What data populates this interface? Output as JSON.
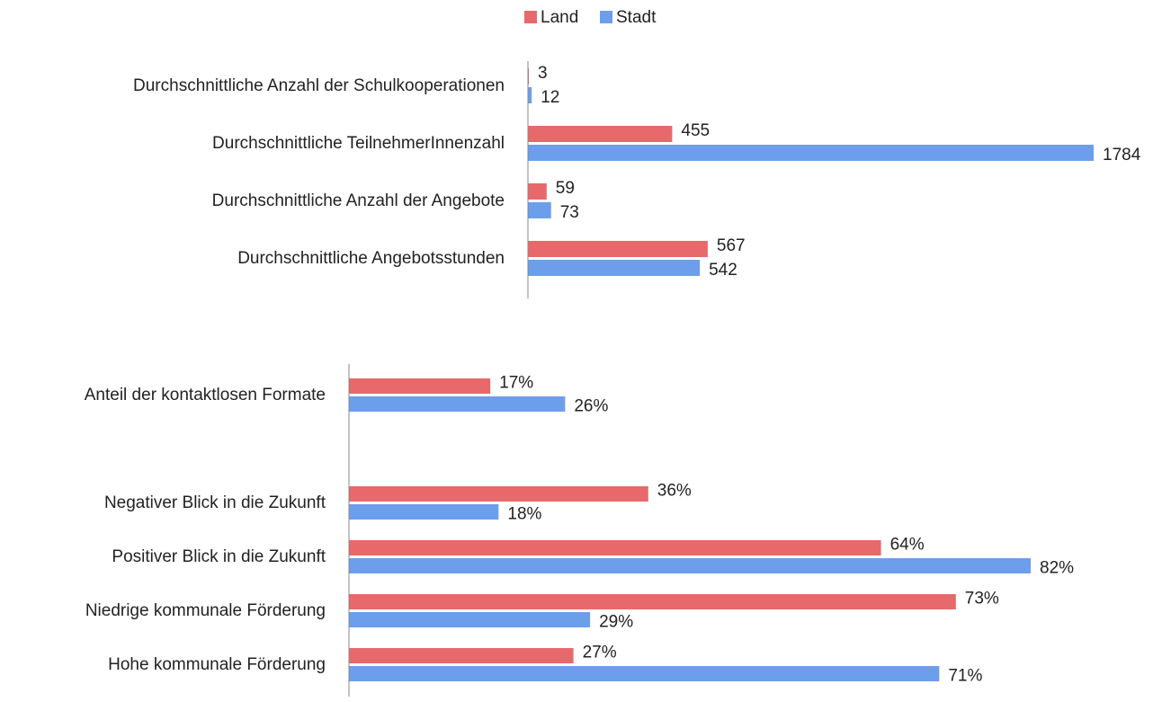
{
  "chart_data": [
    {
      "type": "bar",
      "orientation": "horizontal",
      "categories": [
        "Durchschnittliche Anzahl der Schulkooperationen",
        "Durchschnittliche TeilnehmerInnenzahl",
        "Durchschnittliche Anzahl der Angebote",
        "Durchschnittliche Angebotsstunden"
      ],
      "series": [
        {
          "name": "Land",
          "color": "#e8696b",
          "values": [
            3,
            455,
            59,
            567
          ]
        },
        {
          "name": "Stadt",
          "color": "#6d9eeb",
          "values": [
            12,
            1784,
            73,
            542
          ]
        }
      ]
    },
    {
      "type": "bar",
      "orientation": "horizontal",
      "categories": [
        "Anteil der kontaktlosen Formate",
        null,
        "Negativer Blick in die Zukunft",
        "Positiver Blick in die Zukunft",
        "Niedrige kommunale Förderung",
        "Hohe kommunale Förderung"
      ],
      "series": [
        {
          "name": "Land",
          "color": "#e8696b",
          "values": [
            17,
            null,
            36,
            64,
            73,
            27
          ],
          "value_labels": [
            "17%",
            null,
            "36%",
            "64%",
            "73%",
            "27%"
          ]
        },
        {
          "name": "Stadt",
          "color": "#6d9eeb",
          "values": [
            26,
            null,
            18,
            82,
            29,
            71
          ],
          "value_labels": [
            "26%",
            null,
            "18%",
            "82%",
            "29%",
            "71%"
          ]
        }
      ]
    }
  ]
}
